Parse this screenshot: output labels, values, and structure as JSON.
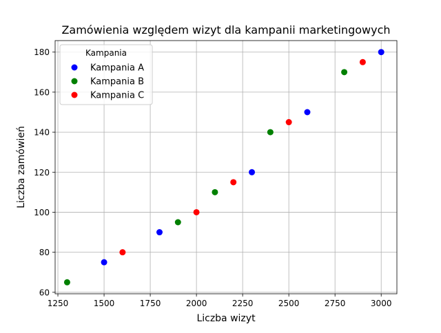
{
  "chart_data": {
    "type": "scatter",
    "title": "Zamówienia względem wizyt dla kampanii marketingowych",
    "xlabel": "Liczba wizyt",
    "ylabel": "Liczba zamówień",
    "xlim": [
      1235,
      3085
    ],
    "ylim": [
      59.25,
      185.75
    ],
    "xticks": [
      1250,
      1500,
      1750,
      2000,
      2250,
      2500,
      2750,
      3000
    ],
    "yticks": [
      60,
      80,
      100,
      120,
      140,
      160,
      180
    ],
    "grid": true,
    "legend": {
      "title": "Kampania",
      "placement": "top-left"
    },
    "series": [
      {
        "name": "Kampania A",
        "color": "#0000ff",
        "x": [
          1500,
          1800,
          2300,
          2600,
          3000
        ],
        "y": [
          75,
          90,
          120,
          150,
          180
        ]
      },
      {
        "name": "Kampania B",
        "color": "#008000",
        "x": [
          1300,
          1900,
          2100,
          2400,
          2800
        ],
        "y": [
          65,
          95,
          110,
          140,
          170
        ]
      },
      {
        "name": "Kampania C",
        "color": "#ff0000",
        "x": [
          1600,
          2000,
          2200,
          2500,
          2900
        ],
        "y": [
          80,
          100,
          115,
          145,
          175
        ]
      }
    ]
  }
}
